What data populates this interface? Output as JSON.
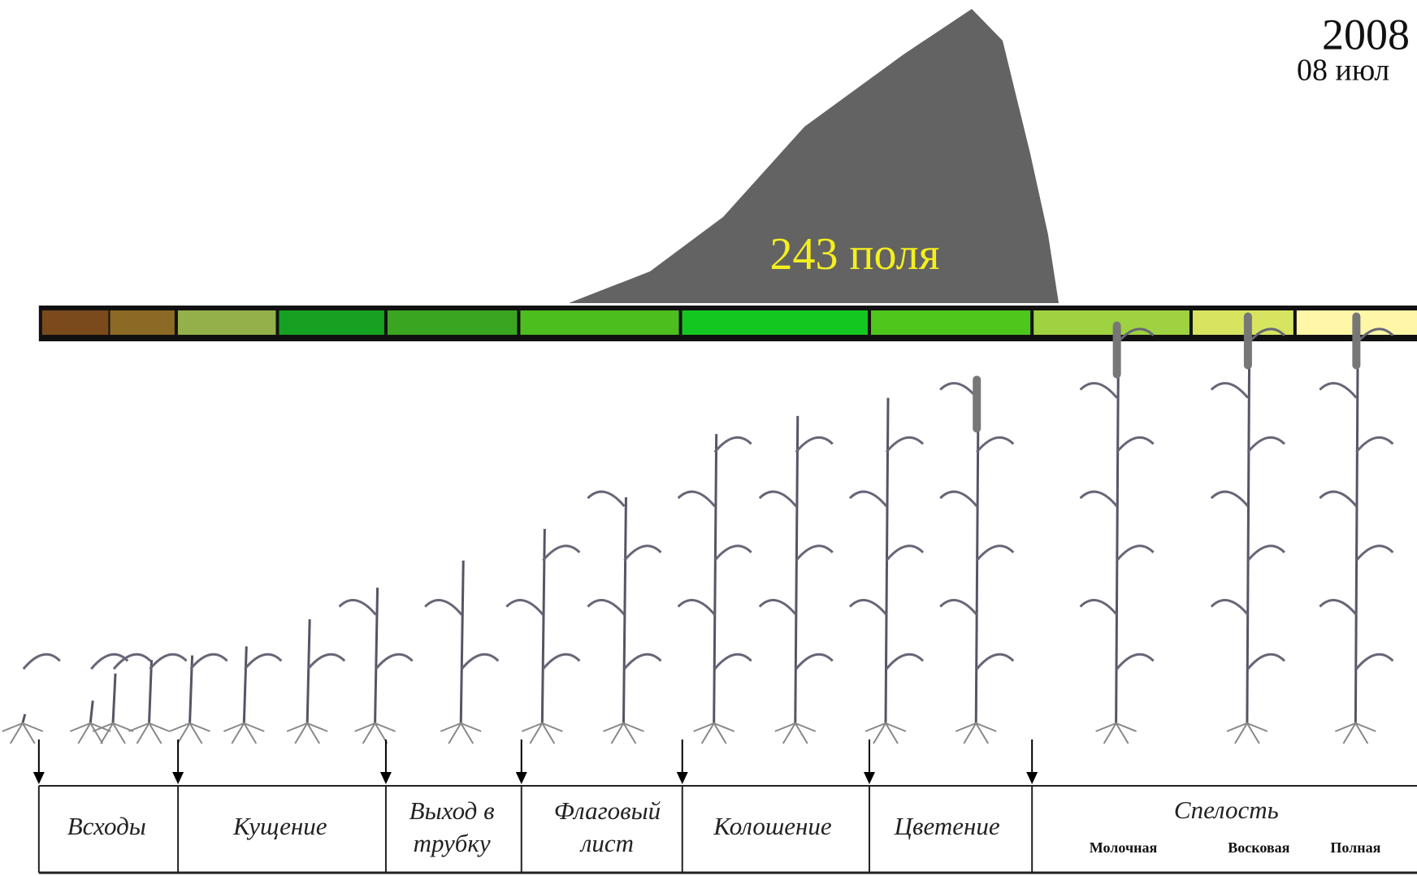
{
  "header": {
    "year": "2008",
    "date": "08 июл"
  },
  "distribution": {
    "label": "243 поля"
  },
  "stages": [
    {
      "label": [
        "Всходы"
      ]
    },
    {
      "label": [
        "Кущение"
      ]
    },
    {
      "label": [
        "Выход в",
        "трубку"
      ]
    },
    {
      "label": [
        "Флаговый",
        "лист"
      ]
    },
    {
      "label": [
        "Колошение"
      ]
    },
    {
      "label": [
        "Цветение"
      ]
    },
    {
      "label": [
        "Спелость"
      ],
      "substages": [
        "Молочная",
        "Восковая",
        "Полная"
      ]
    }
  ]
}
